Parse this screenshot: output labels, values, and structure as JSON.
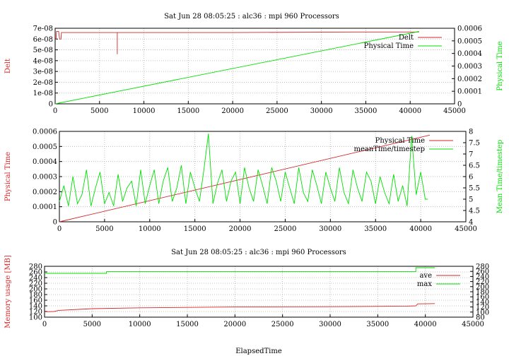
{
  "titles": {
    "top": "Sat Jun 28 08:05:25 : alc36 : mpi 960 Processors",
    "bottom": "Sat Jun 28 08:05:25 : alc36 : mpi 960 Processors"
  },
  "colors": {
    "red": "#d62728",
    "green": "#00e000",
    "grid": "#b0b0b0"
  },
  "chart_data": [
    {
      "type": "line",
      "xlim": [
        0,
        45000
      ],
      "xticks": [
        "0",
        "5000",
        "10000",
        "15000",
        "20000",
        "25000",
        "30000",
        "35000",
        "40000",
        "45000"
      ],
      "left_axis": {
        "label": "Delt",
        "color": "#d62728",
        "ylim": [
          0,
          7e-08
        ],
        "ticks": [
          "0",
          "1e-08",
          "2e-08",
          "3e-08",
          "4e-08",
          "5e-08",
          "6e-08",
          "7e-08"
        ]
      },
      "right_axis": {
        "label": "Physical Time",
        "color": "#00e000",
        "ylim": [
          0,
          0.0006
        ],
        "ticks": [
          "0",
          "0.0001",
          "0.0002",
          "0.0003",
          "0.0004",
          "0.0005",
          "0.0006"
        ]
      },
      "legend_position": "top-right",
      "series": [
        {
          "name": "Delt",
          "axis": "left",
          "color": "#d62728",
          "x": [
            0,
            100,
            150,
            400,
            500,
            650,
            700,
            7000,
            7000,
            7000,
            7010,
            20000,
            34000,
            41000
          ],
          "y": [
            6e-08,
            6e-08,
            6.7e-08,
            6.7e-08,
            6e-08,
            6e-08,
            6.6e-08,
            6.6e-08,
            4.6e-08,
            6.6e-08,
            6.6e-08,
            6.6e-08,
            6.65e-08,
            6.65e-08
          ]
        },
        {
          "name": "Physical Time",
          "axis": "right",
          "color": "#00e000",
          "x": [
            0,
            41000
          ],
          "y": [
            0,
            0.000575
          ]
        }
      ]
    },
    {
      "type": "line",
      "xlim": [
        0,
        45000
      ],
      "xticks": [
        "0",
        "5000",
        "10000",
        "15000",
        "20000",
        "25000",
        "30000",
        "35000",
        "40000",
        "45000"
      ],
      "left_axis": {
        "label": "Physical Time",
        "color": "#d62728",
        "ylim": [
          0,
          0.0006
        ],
        "ticks": [
          "0",
          "0.0001",
          "0.0002",
          "0.0003",
          "0.0004",
          "0.0005",
          "0.0006"
        ]
      },
      "right_axis": {
        "label": "Mean Time/timestep",
        "color": "#00e000",
        "ylim": [
          4,
          8
        ],
        "ticks": [
          "4",
          "4.5",
          "5",
          "5.5",
          "6",
          "6.5",
          "7",
          "7.5",
          "8"
        ]
      },
      "legend_position": "top-right",
      "series": [
        {
          "name": "Physical Time",
          "axis": "left",
          "color": "#d62728",
          "x": [
            0,
            41000
          ],
          "y": [
            0,
            0.000575
          ]
        },
        {
          "name": "meanTime/timestep",
          "axis": "right",
          "color": "#00e000",
          "x": [
            0,
            500,
            1000,
            1500,
            2000,
            2500,
            3000,
            3500,
            4000,
            4500,
            5000,
            5500,
            6000,
            6500,
            7000,
            7500,
            8000,
            8500,
            9000,
            9500,
            10000,
            10500,
            11000,
            11500,
            12000,
            12500,
            13000,
            13500,
            14000,
            14500,
            15000,
            15500,
            16000,
            16500,
            17000,
            17500,
            18000,
            18500,
            19000,
            19500,
            20000,
            20500,
            21000,
            21500,
            22000,
            22500,
            23000,
            23500,
            24000,
            24500,
            25000,
            25500,
            26000,
            26500,
            27000,
            27500,
            28000,
            28500,
            29000,
            29500,
            30000,
            30500,
            31000,
            31500,
            32000,
            32500,
            33000,
            33500,
            34000,
            34500,
            35000,
            35500,
            36000,
            36500,
            37000,
            37500,
            38000,
            38500,
            39000,
            39500,
            40000,
            40500,
            40800
          ],
          "y": [
            4.9,
            5.6,
            4.7,
            6.0,
            4.8,
            5.2,
            6.3,
            4.7,
            5.5,
            6.2,
            4.8,
            5.3,
            4.7,
            6.1,
            4.9,
            5.5,
            5.8,
            4.7,
            6.3,
            4.8,
            5.6,
            6.3,
            4.8,
            5.8,
            6.4,
            4.9,
            5.5,
            6.5,
            4.8,
            6.2,
            5.5,
            4.9,
            6.3,
            7.9,
            4.8,
            5.7,
            6.3,
            4.9,
            5.8,
            6.2,
            4.8,
            6.4,
            5.5,
            4.9,
            6.3,
            5.6,
            4.8,
            6.4,
            5.8,
            4.9,
            6.2,
            5.5,
            4.8,
            6.4,
            5.3,
            4.9,
            6.3,
            5.6,
            4.8,
            6.2,
            5.5,
            4.9,
            6.4,
            5.3,
            4.8,
            6.3,
            5.5,
            4.9,
            6.2,
            5.8,
            4.8,
            6.0,
            5.3,
            4.8,
            6.1,
            4.9,
            5.6,
            4.7,
            7.8,
            5.2,
            6.2,
            5.0,
            5.0
          ]
        }
      ]
    },
    {
      "type": "line",
      "xlabel": "ElapsedTime",
      "xlim": [
        0,
        45000
      ],
      "xticks": [
        "0",
        "5000",
        "10000",
        "15000",
        "20000",
        "25000",
        "30000",
        "35000",
        "40000",
        "45000"
      ],
      "left_axis": {
        "label": "Memory usage [MB]",
        "color": "#d62728",
        "ylim": [
          100,
          280
        ],
        "ticks": [
          "100",
          "120",
          "140",
          "160",
          "180",
          "200",
          "220",
          "240",
          "260",
          "280"
        ]
      },
      "right_axis": {
        "label": "",
        "color": "#000000",
        "ylim": [
          80,
          280
        ],
        "ticks": [
          "80",
          "100",
          "120",
          "140",
          "160",
          "180",
          "200",
          "220",
          "240",
          "260",
          "280"
        ]
      },
      "legend_position": "top-right",
      "series": [
        {
          "name": "ave",
          "axis": "left",
          "color": "#d62728",
          "x": [
            0,
            1000,
            1500,
            5000,
            10000,
            20000,
            30000,
            38000,
            39000,
            39200,
            41000
          ],
          "y": [
            119,
            120,
            124,
            130,
            133,
            136,
            137,
            139,
            140,
            147,
            148
          ]
        },
        {
          "name": "max",
          "axis": "left",
          "color": "#00e000",
          "x": [
            0,
            6500,
            6500,
            39000,
            39000,
            41000
          ],
          "y": [
            255,
            255,
            261,
            261,
            275,
            275
          ]
        }
      ]
    }
  ]
}
